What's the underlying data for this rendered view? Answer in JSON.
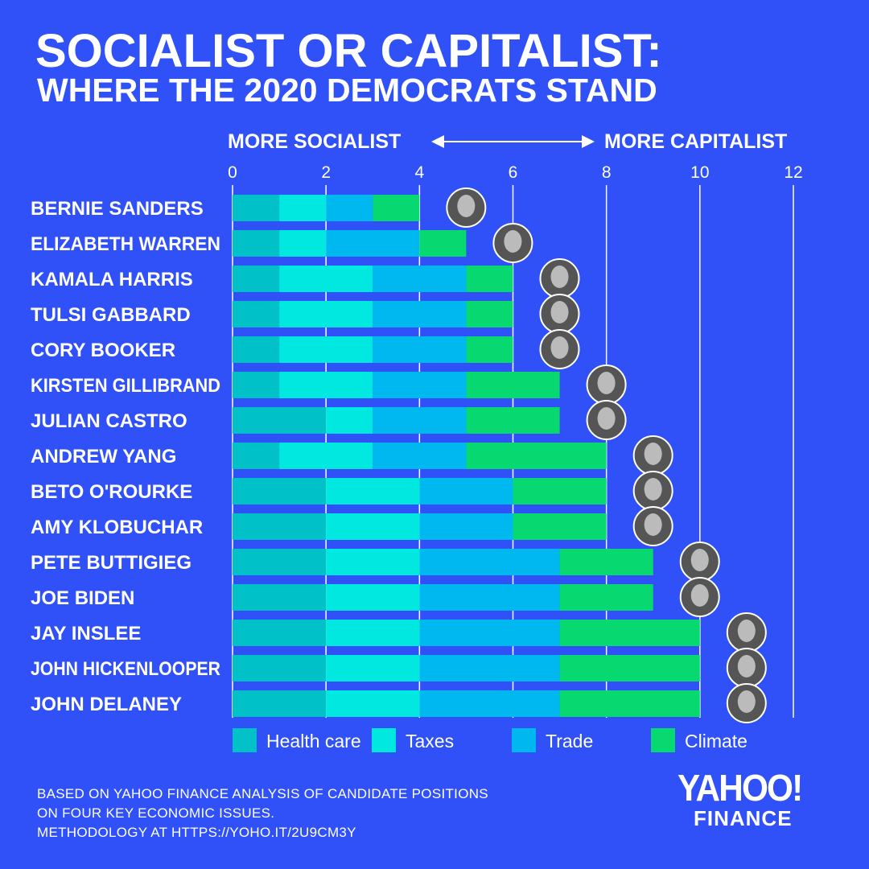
{
  "title": "SOCIALIST OR CAPITALIST:",
  "subtitle": "WHERE THE 2020 DEMOCRATS STAND",
  "direction": {
    "left": "MORE SOCIALIST",
    "right": "MORE CAPITALIST"
  },
  "colors": {
    "background": "#3050F8",
    "Health care": "#00C0C8",
    "Taxes": "#00E8E0",
    "Trade": "#00B8F0",
    "Climate": "#08D870"
  },
  "chart_data": {
    "type": "bar",
    "orientation": "horizontal-stacked",
    "xlim": [
      0,
      12
    ],
    "xticks": [
      "0",
      "2",
      "4",
      "6",
      "8",
      "10",
      "12"
    ],
    "grid": true,
    "legend_position": "bottom",
    "categories": [
      "BERNIE SANDERS",
      "ELIZABETH WARREN",
      "KAMALA HARRIS",
      "TULSI GABBARD",
      "CORY BOOKER",
      "KIRSTEN GILLIBRAND",
      "JULIAN CASTRO",
      "ANDREW YANG",
      "BETO O'ROURKE",
      "AMY KLOBUCHAR",
      "PETE BUTTIGIEG",
      "JOE BIDEN",
      "JAY INSLEE",
      "JOHN HICKENLOOPER",
      "JOHN DELANEY"
    ],
    "series": [
      {
        "name": "Health care",
        "values": [
          1,
          1,
          1,
          1,
          1,
          1,
          2,
          1,
          2,
          2,
          2,
          2,
          2,
          2,
          2
        ]
      },
      {
        "name": "Taxes",
        "values": [
          1,
          1,
          2,
          2,
          2,
          2,
          1,
          2,
          2,
          2,
          2,
          2,
          2,
          2,
          2
        ]
      },
      {
        "name": "Trade",
        "values": [
          1,
          2,
          2,
          2,
          2,
          2,
          2,
          2,
          2,
          2,
          3,
          3,
          3,
          3,
          3
        ]
      },
      {
        "name": "Climate",
        "values": [
          1,
          1,
          1,
          1,
          1,
          2,
          2,
          3,
          2,
          2,
          2,
          2,
          3,
          3,
          3
        ]
      }
    ]
  },
  "footnote": [
    "BASED ON YAHOO FINANCE ANALYSIS OF CANDIDATE POSITIONS",
    "ON FOUR KEY ECONOMIC ISSUES.",
    "METHODOLOGY AT HTTPS://YOHO.IT/2U9CM3Y"
  ],
  "logo": {
    "line1": "YAHOO!",
    "line2": "FINANCE"
  }
}
